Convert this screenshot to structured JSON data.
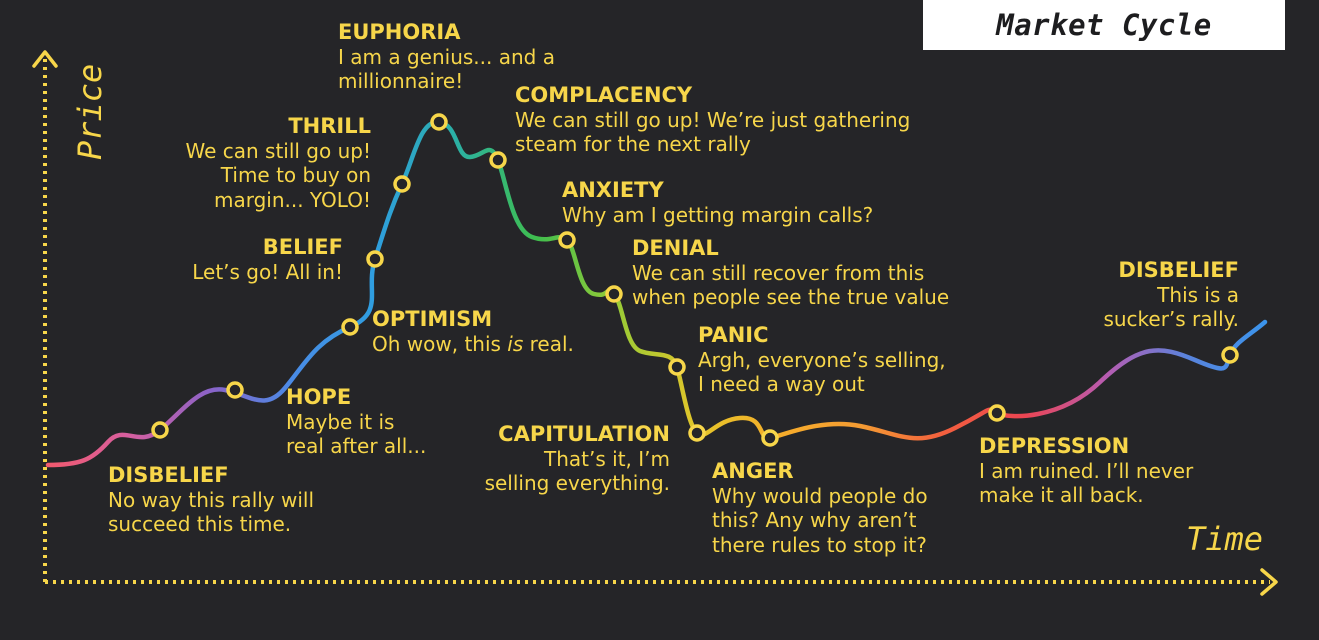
{
  "title": "Market Cycle",
  "axes": {
    "y_label": "Price",
    "x_label": "Time"
  },
  "colors": {
    "background": "#252528",
    "text": "#f7d64a",
    "title_box": "#ffffff",
    "curve_gradient": [
      "#f25a6e",
      "#d65fa0",
      "#8a63c8",
      "#4a8be6",
      "#2f9ee0",
      "#2bb0a6",
      "#3fbe4e",
      "#9acb36",
      "#e4c52a",
      "#f6ad2b",
      "#f49b33",
      "#f3603e",
      "#ec4552",
      "#b85cb1",
      "#5a83dc",
      "#3a95ec"
    ]
  },
  "stages": [
    {
      "name": "DISBELIEF",
      "text": [
        "No way this rally will",
        "succeed this time."
      ]
    },
    {
      "name": "HOPE",
      "text": [
        "Maybe it is",
        "real after all..."
      ]
    },
    {
      "name": "OPTIMISM",
      "text": [
        "Oh wow, this ",
        "is",
        " real."
      ]
    },
    {
      "name": "BELIEF",
      "text": [
        "Let’s go! All in!"
      ]
    },
    {
      "name": "THRILL",
      "text": [
        "We can still go up!",
        "Time to buy on",
        "margin... YOLO!"
      ]
    },
    {
      "name": "EUPHORIA",
      "text": [
        "I am a genius... and a",
        "millionnaire!"
      ]
    },
    {
      "name": "COMPLACENCY",
      "text": [
        "We can still go up! We’re just gathering",
        "steam for the next rally"
      ]
    },
    {
      "name": "ANXIETY",
      "text": [
        "Why am I getting margin calls?"
      ]
    },
    {
      "name": "DENIAL",
      "text": [
        "We can still recover from this",
        "when people see the true value"
      ]
    },
    {
      "name": "PANIC",
      "text": [
        "Argh, everyone’s selling,",
        "I need a way out"
      ]
    },
    {
      "name": "CAPITULATION",
      "text": [
        "That’s it, I’m",
        "selling everything."
      ]
    },
    {
      "name": "ANGER",
      "text": [
        "Why would people do",
        "this? Any why aren’t",
        "there rules to stop it?"
      ]
    },
    {
      "name": "DEPRESSION",
      "text": [
        "I am ruined. I’ll never",
        "make it all back."
      ]
    },
    {
      "name": "DISBELIEF",
      "text": [
        "This is a",
        "sucker’s rally."
      ]
    }
  ]
}
